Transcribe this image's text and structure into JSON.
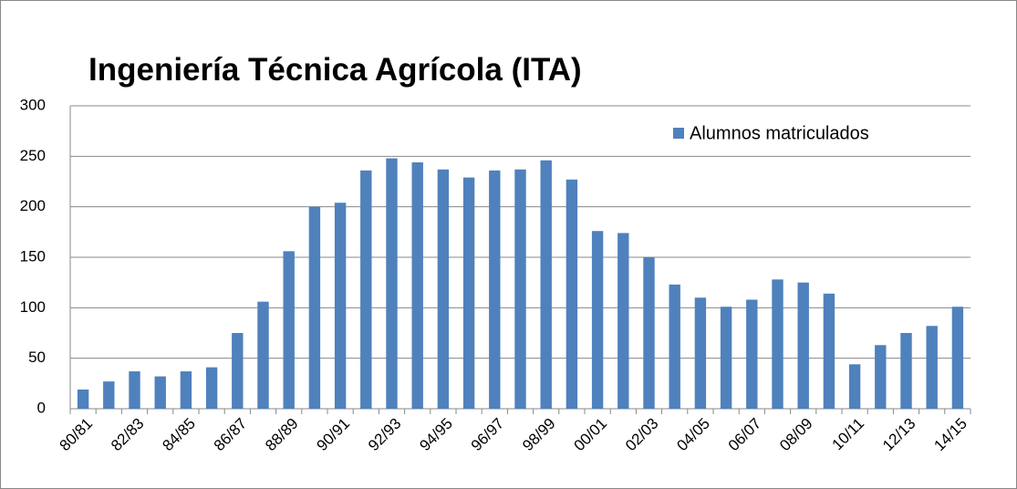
{
  "chart_data": {
    "type": "bar",
    "title": "Ingeniería Técnica Agrícola (ITA)",
    "categories": [
      "80/81",
      null,
      "82/83",
      null,
      "84/85",
      null,
      "86/87",
      null,
      "88/89",
      null,
      "90/91",
      null,
      "92/93",
      null,
      "94/95",
      null,
      "96/97",
      null,
      "98/99",
      null,
      "00/01",
      null,
      "02/03",
      null,
      "04/05",
      null,
      "06/07",
      null,
      "08/09",
      null,
      "10/11",
      null,
      "12/13",
      null,
      "14/15"
    ],
    "series": [
      {
        "name": "Alumnos matriculados",
        "color": "#4f81bd",
        "values": [
          19,
          27,
          37,
          32,
          37,
          41,
          75,
          106,
          156,
          200,
          204,
          236,
          248,
          244,
          237,
          229,
          236,
          237,
          246,
          227,
          176,
          174,
          150,
          123,
          110,
          101,
          108,
          128,
          125,
          114,
          44,
          63,
          75,
          82,
          101
        ]
      }
    ],
    "ylim": [
      0,
      300
    ],
    "yticks": [
      0,
      50,
      100,
      150,
      200,
      250,
      300
    ],
    "grid": true,
    "legend": "upper right"
  }
}
